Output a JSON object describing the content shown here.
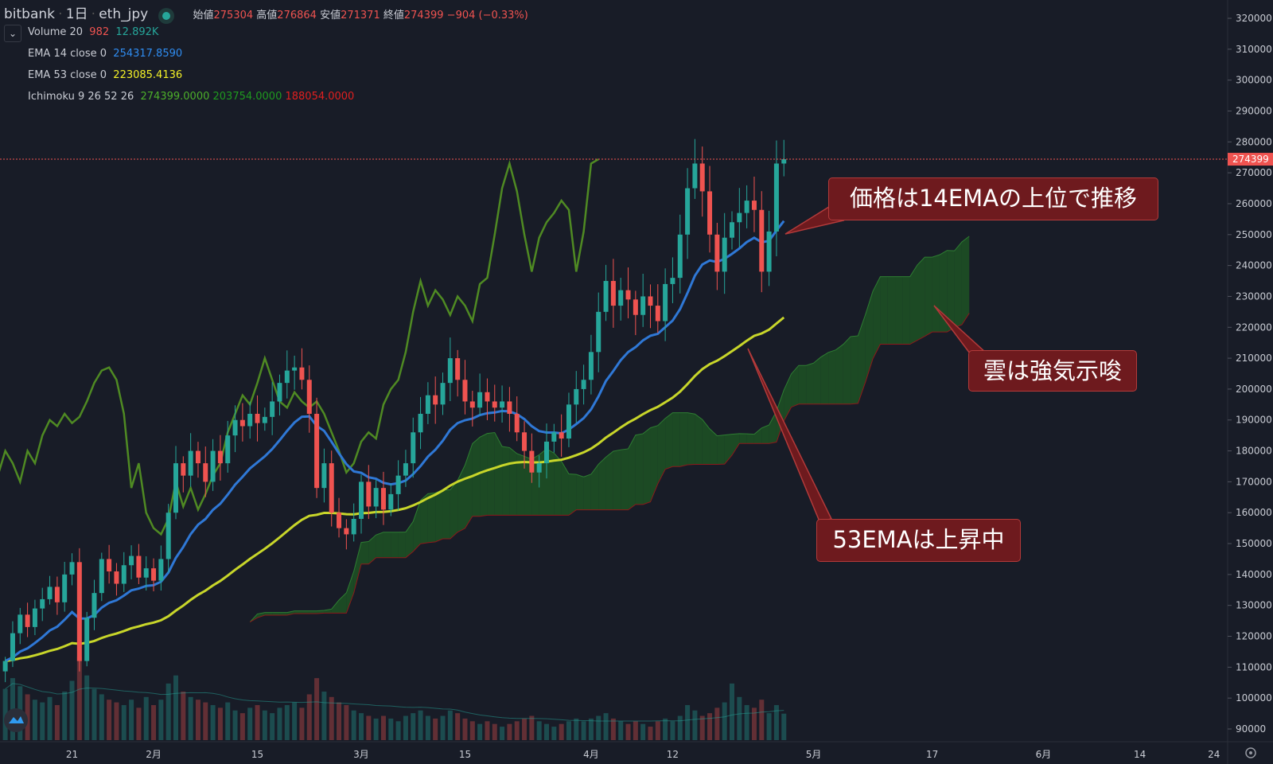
{
  "header": {
    "exchange": "bitbank",
    "interval": "1日",
    "symbol": "eth_jpy",
    "open_label": "始値",
    "open": "275304",
    "high_label": "高値",
    "high": "276864",
    "low_label": "安値",
    "low": "271371",
    "close_label": "終値",
    "close": "274399",
    "change": "−904 (−0.33%)"
  },
  "indicators": {
    "volume": {
      "label": "Volume 20",
      "v1": "982",
      "v2": "12.892K"
    },
    "ema14": {
      "label": "EMA 14 close 0",
      "value": "254317.8590"
    },
    "ema53": {
      "label": "EMA 53 close 0",
      "value": "223085.4136"
    },
    "ichimoku": {
      "label": "Ichimoku 9 26 52 26",
      "v1": "274399.0000",
      "v2": "203754.0000",
      "v3": "188054.0000"
    }
  },
  "annotations": [
    {
      "text": "価格は14EMAの上位で推移"
    },
    {
      "text": "雲は強気示唆"
    },
    {
      "text": "53EMAは上昇中"
    }
  ],
  "colors": {
    "up": "#26a69a",
    "down": "#ef5350",
    "ema14": "#2f78d6",
    "ema53": "#c8d62a",
    "lagging": "#4f8a23",
    "cloud_up": "#1d5a24",
    "span_b": "#8b1a1a",
    "price_line": "#ef5350"
  },
  "chart_data": {
    "type": "candlestick",
    "symbol": "eth_jpy",
    "start_date": "2021-01-12",
    "ylim": [
      90000,
      320000
    ],
    "y_ticks": [
      "320000",
      "310000",
      "300000",
      "290000",
      "280000",
      "270000",
      "260000",
      "250000",
      "240000",
      "230000",
      "220000",
      "210000",
      "200000",
      "190000",
      "180000",
      "170000",
      "160000",
      "150000",
      "140000",
      "130000",
      "120000",
      "110000",
      "100000",
      "90000"
    ],
    "x_ticks": [
      {
        "label": "21",
        "date": "2021-01-21"
      },
      {
        "label": "2月",
        "date": "2021-02-01"
      },
      {
        "label": "15",
        "date": "2021-02-15"
      },
      {
        "label": "3月",
        "date": "2021-03-01"
      },
      {
        "label": "15",
        "date": "2021-03-15"
      },
      {
        "label": "4月",
        "date": "2021-04-01"
      },
      {
        "label": "12",
        "date": "2021-04-12"
      },
      {
        "label": "5月",
        "date": "2021-05-01"
      },
      {
        "label": "17",
        "date": "2021-05-17"
      },
      {
        "label": "6月",
        "date": "2021-06-01"
      },
      {
        "label": "14",
        "date": "2021-06-14"
      },
      {
        "label": "24",
        "date": "2021-06-24"
      }
    ],
    "last_price": "274399",
    "closes": [
      112000,
      121000,
      127000,
      123000,
      129000,
      132000,
      136000,
      131000,
      140000,
      144000,
      112000,
      126000,
      134000,
      145000,
      141000,
      137000,
      143000,
      146000,
      139000,
      142000,
      138000,
      145000,
      160000,
      176000,
      172000,
      180000,
      176000,
      170000,
      180000,
      176000,
      185000,
      190000,
      188000,
      192000,
      189000,
      191000,
      196000,
      202000,
      206000,
      207000,
      203000,
      192000,
      168000,
      176000,
      160000,
      155000,
      153000,
      158000,
      170000,
      162000,
      168000,
      161000,
      166000,
      172000,
      176000,
      186000,
      192000,
      198000,
      195000,
      202000,
      210000,
      203000,
      196000,
      194000,
      199000,
      196000,
      194000,
      196000,
      192000,
      186000,
      180000,
      173000,
      176000,
      183000,
      186000,
      184000,
      195000,
      200000,
      203000,
      212000,
      225000,
      235000,
      227000,
      232000,
      229000,
      224000,
      230000,
      227000,
      222000,
      234000,
      236000,
      250000,
      265000,
      273000,
      264000,
      250000,
      238000,
      249000,
      254000,
      257000,
      261000,
      258000,
      238000,
      251000,
      273000,
      274399
    ],
    "volumes": [
      1900,
      2300,
      2000,
      1700,
      1500,
      1400,
      1600,
      1300,
      1800,
      2200,
      3100,
      2400,
      1900,
      1700,
      1500,
      1400,
      1300,
      1500,
      1200,
      1600,
      1300,
      1500,
      2100,
      2400,
      1800,
      1600,
      1500,
      1400,
      1300,
      1200,
      1400,
      1100,
      1000,
      1200,
      1300,
      1100,
      1000,
      1200,
      1300,
      1400,
      1200,
      1700,
      2300,
      1800,
      1600,
      1400,
      1300,
      1100,
      1000,
      900,
      800,
      900,
      800,
      700,
      900,
      1000,
      1100,
      900,
      800,
      900,
      1100,
      1000,
      800,
      700,
      600,
      700,
      600,
      500,
      600,
      700,
      800,
      900,
      700,
      600,
      500,
      600,
      700,
      800,
      700,
      800,
      900,
      1000,
      800,
      700,
      600,
      700,
      600,
      500,
      700,
      800,
      700,
      900,
      1300,
      1100,
      900,
      1000,
      1200,
      1400,
      2100,
      1600,
      1300,
      1200,
      1500,
      1000,
      1300,
      982
    ]
  }
}
